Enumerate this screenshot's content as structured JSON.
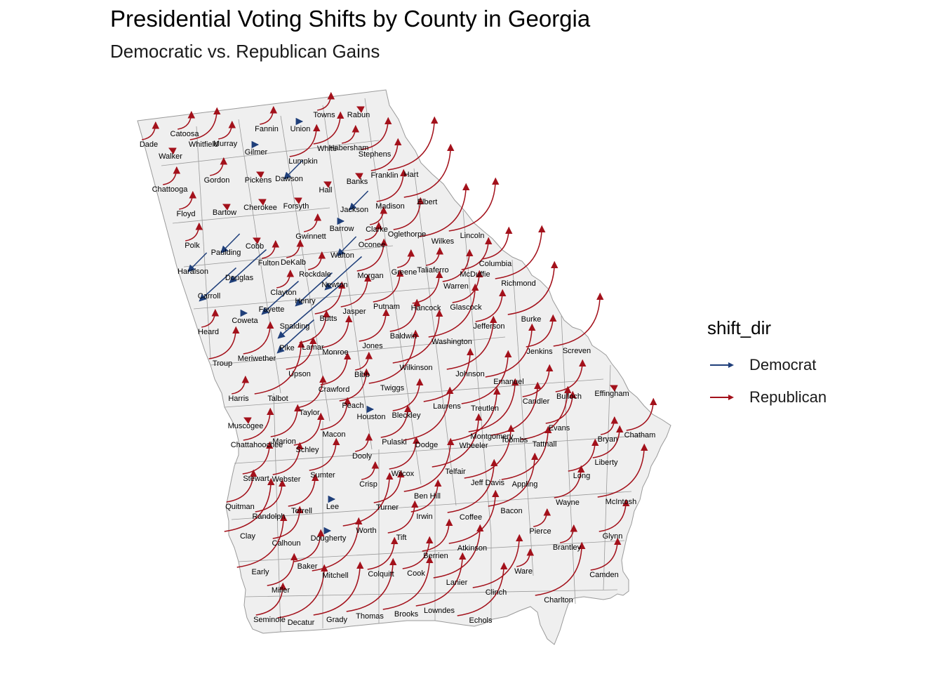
{
  "title": "Presidential Voting Shifts by County in Georgia",
  "subtitle": "Democratic vs. Republican Gains",
  "legend": {
    "title": "shift_dir",
    "items": [
      {
        "label": "Democrat",
        "color": "#1f3f7a"
      },
      {
        "label": "Republican",
        "color": "#a3111b"
      }
    ]
  },
  "map": {
    "region": "Georgia",
    "fill_color": "#efefef",
    "border_color": "#9a9a9a",
    "counties": [
      {
        "name": "Dade",
        "dir": "Republican",
        "size": "small"
      },
      {
        "name": "Catoosa",
        "dir": "Republican",
        "size": "small"
      },
      {
        "name": "Whitfield",
        "dir": "Republican",
        "size": "medium"
      },
      {
        "name": "Murray",
        "dir": "Republican",
        "size": "small"
      },
      {
        "name": "Fannin",
        "dir": "Republican",
        "size": "small"
      },
      {
        "name": "Union",
        "dir": "Democrat",
        "size": "tiny"
      },
      {
        "name": "Towns",
        "dir": "Republican",
        "size": "small"
      },
      {
        "name": "Rabun",
        "dir": "Republican",
        "size": "tiny"
      },
      {
        "name": "Walker",
        "dir": "Republican",
        "size": "tiny"
      },
      {
        "name": "Gilmer",
        "dir": "Democrat",
        "size": "tiny"
      },
      {
        "name": "White",
        "dir": "Republican",
        "size": "medium"
      },
      {
        "name": "Habersham",
        "dir": "Republican",
        "size": "small"
      },
      {
        "name": "Stephens",
        "dir": "Republican",
        "size": "medium"
      },
      {
        "name": "Lumpkin",
        "dir": "Republican",
        "size": "medium"
      },
      {
        "name": "Chattooga",
        "dir": "Republican",
        "size": "small"
      },
      {
        "name": "Gordon",
        "dir": "Republican",
        "size": "small"
      },
      {
        "name": "Pickens",
        "dir": "Republican",
        "size": "tiny"
      },
      {
        "name": "Dawson",
        "dir": "Democrat",
        "size": "small"
      },
      {
        "name": "Hall",
        "dir": "Republican",
        "size": "tiny"
      },
      {
        "name": "Banks",
        "dir": "Republican",
        "size": "tiny"
      },
      {
        "name": "Franklin",
        "dir": "Republican",
        "size": "medium"
      },
      {
        "name": "Hart",
        "dir": "Republican",
        "size": "large"
      },
      {
        "name": "Floyd",
        "dir": "Republican",
        "size": "small"
      },
      {
        "name": "Bartow",
        "dir": "Republican",
        "size": "tiny"
      },
      {
        "name": "Cherokee",
        "dir": "Republican",
        "size": "tiny"
      },
      {
        "name": "Forsyth",
        "dir": "Republican",
        "size": "tiny"
      },
      {
        "name": "Jackson",
        "dir": "Democrat",
        "size": "small"
      },
      {
        "name": "Madison",
        "dir": "Republican",
        "size": "medium"
      },
      {
        "name": "Elbert",
        "dir": "Republican",
        "size": "large"
      },
      {
        "name": "Polk",
        "dir": "Republican",
        "size": "small"
      },
      {
        "name": "Paulding",
        "dir": "Democrat",
        "size": "small"
      },
      {
        "name": "Cobb",
        "dir": "Republican",
        "size": "tiny"
      },
      {
        "name": "Gwinnett",
        "dir": "Republican",
        "size": "small"
      },
      {
        "name": "Barrow",
        "dir": "Democrat",
        "size": "tiny"
      },
      {
        "name": "Clarke",
        "dir": "Republican",
        "size": "small"
      },
      {
        "name": "Oglethorpe",
        "dir": "Republican",
        "size": "medium"
      },
      {
        "name": "Wilkes",
        "dir": "Republican",
        "size": "large"
      },
      {
        "name": "Lincoln",
        "dir": "Republican",
        "size": "large"
      },
      {
        "name": "Haralson",
        "dir": "Democrat",
        "size": "small"
      },
      {
        "name": "Fulton",
        "dir": "Republican",
        "size": "small"
      },
      {
        "name": "DeKalb",
        "dir": "Republican",
        "size": "small"
      },
      {
        "name": "Walton",
        "dir": "Democrat",
        "size": "small"
      },
      {
        "name": "Oconee",
        "dir": "Republican",
        "size": "small"
      },
      {
        "name": "Columbia",
        "dir": "Republican",
        "size": "medium"
      },
      {
        "name": "Douglas",
        "dir": "Democrat",
        "size": "medium"
      },
      {
        "name": "Rockdale",
        "dir": "Republican",
        "size": "small"
      },
      {
        "name": "Morgan",
        "dir": "Republican",
        "size": "medium"
      },
      {
        "name": "Greene",
        "dir": "Republican",
        "size": "small"
      },
      {
        "name": "Taliaferro",
        "dir": "Republican",
        "size": "small"
      },
      {
        "name": "McDuffie",
        "dir": "Republican",
        "size": "medium"
      },
      {
        "name": "Carroll",
        "dir": "Democrat",
        "size": "medium"
      },
      {
        "name": "Clayton",
        "dir": "Republican",
        "size": "small"
      },
      {
        "name": "Newton",
        "dir": "Democrat",
        "size": "medium"
      },
      {
        "name": "Warren",
        "dir": "Republican",
        "size": "medium"
      },
      {
        "name": "Richmond",
        "dir": "Republican",
        "size": "large"
      },
      {
        "name": "Henry",
        "dir": "Democrat",
        "size": "medium"
      },
      {
        "name": "Fayette",
        "dir": "Democrat",
        "size": "medium"
      },
      {
        "name": "Jasper",
        "dir": "Republican",
        "size": "medium"
      },
      {
        "name": "Putnam",
        "dir": "Republican",
        "size": "medium"
      },
      {
        "name": "Hancock",
        "dir": "Republican",
        "size": "medium"
      },
      {
        "name": "Glascock",
        "dir": "Republican",
        "size": "medium"
      },
      {
        "name": "Coweta",
        "dir": "Democrat",
        "size": "tiny"
      },
      {
        "name": "Butts",
        "dir": "Republican",
        "size": "medium"
      },
      {
        "name": "Heard",
        "dir": "Republican",
        "size": "small"
      },
      {
        "name": "Spalding",
        "dir": "Democrat",
        "size": "large"
      },
      {
        "name": "Jefferson",
        "dir": "Republican",
        "size": "medium"
      },
      {
        "name": "Burke",
        "dir": "Republican",
        "size": "large"
      },
      {
        "name": "Baldwin",
        "dir": "Republican",
        "size": "medium"
      },
      {
        "name": "Washington",
        "dir": "Republican",
        "size": "large"
      },
      {
        "name": "Pike",
        "dir": "Democrat",
        "size": "medium"
      },
      {
        "name": "Lamar",
        "dir": "Republican",
        "size": "medium"
      },
      {
        "name": "Meriwether",
        "dir": "Republican",
        "size": "medium"
      },
      {
        "name": "Monroe",
        "dir": "Republican",
        "size": "medium"
      },
      {
        "name": "Jones",
        "dir": "Republican",
        "size": "medium"
      },
      {
        "name": "Jenkins",
        "dir": "Republican",
        "size": "medium"
      },
      {
        "name": "Screven",
        "dir": "Republican",
        "size": "large"
      },
      {
        "name": "Troup",
        "dir": "Republican",
        "size": "medium"
      },
      {
        "name": "Upson",
        "dir": "Republican",
        "size": "medium"
      },
      {
        "name": "Wilkinson",
        "dir": "Republican",
        "size": "large"
      },
      {
        "name": "Johnson",
        "dir": "Republican",
        "size": "large"
      },
      {
        "name": "Bibb",
        "dir": "Republican",
        "size": "small"
      },
      {
        "name": "Emanuel",
        "dir": "Republican",
        "size": "large"
      },
      {
        "name": "Crawford",
        "dir": "Republican",
        "size": "medium"
      },
      {
        "name": "Twiggs",
        "dir": "Republican",
        "size": "large"
      },
      {
        "name": "Harris",
        "dir": "Republican",
        "size": "small"
      },
      {
        "name": "Talbot",
        "dir": "Republican",
        "size": "large"
      },
      {
        "name": "Bulloch",
        "dir": "Republican",
        "size": "medium"
      },
      {
        "name": "Effingham",
        "dir": "Republican",
        "size": "tiny"
      },
      {
        "name": "Candler",
        "dir": "Republican",
        "size": "medium"
      },
      {
        "name": "Peach",
        "dir": "Republican",
        "size": "medium"
      },
      {
        "name": "Laurens",
        "dir": "Republican",
        "size": "large"
      },
      {
        "name": "Taylor",
        "dir": "Republican",
        "size": "medium"
      },
      {
        "name": "Houston",
        "dir": "Democrat",
        "size": "tiny"
      },
      {
        "name": "Bleckley",
        "dir": "Republican",
        "size": "medium"
      },
      {
        "name": "Treutlen",
        "dir": "Republican",
        "size": "large"
      },
      {
        "name": "Muscogee",
        "dir": "Republican",
        "size": "tiny"
      },
      {
        "name": "Evans",
        "dir": "Republican",
        "size": "medium"
      },
      {
        "name": "Macon",
        "dir": "Republican",
        "size": "medium"
      },
      {
        "name": "Montgomery",
        "dir": "Republican",
        "size": "large"
      },
      {
        "name": "Toombs",
        "dir": "Republican",
        "size": "large"
      },
      {
        "name": "Bryan",
        "dir": "Republican",
        "size": "small"
      },
      {
        "name": "Chatham",
        "dir": "Republican",
        "size": "medium"
      },
      {
        "name": "Chattahoochee",
        "dir": "Republican",
        "size": "medium"
      },
      {
        "name": "Marion",
        "dir": "Republican",
        "size": "medium"
      },
      {
        "name": "Pulaski",
        "dir": "Republican",
        "size": "medium"
      },
      {
        "name": "Dodge",
        "dir": "Republican",
        "size": "large"
      },
      {
        "name": "Wheeler",
        "dir": "Republican",
        "size": "large"
      },
      {
        "name": "Tattnall",
        "dir": "Republican",
        "size": "large"
      },
      {
        "name": "Schley",
        "dir": "Republican",
        "size": "medium"
      },
      {
        "name": "Dooly",
        "dir": "Republican",
        "size": "small"
      },
      {
        "name": "Liberty",
        "dir": "Republican",
        "size": "medium"
      },
      {
        "name": "Stewart",
        "dir": "Republican",
        "size": "medium"
      },
      {
        "name": "Webster",
        "dir": "Republican",
        "size": "medium"
      },
      {
        "name": "Sumter",
        "dir": "Republican",
        "size": "medium"
      },
      {
        "name": "Wilcox",
        "dir": "Republican",
        "size": "medium"
      },
      {
        "name": "Telfair",
        "dir": "Republican",
        "size": "large"
      },
      {
        "name": "Long",
        "dir": "Republican",
        "size": "medium"
      },
      {
        "name": "Crisp",
        "dir": "Republican",
        "size": "small"
      },
      {
        "name": "Jeff Davis",
        "dir": "Republican",
        "size": "large"
      },
      {
        "name": "Appling",
        "dir": "Republican",
        "size": "large"
      },
      {
        "name": "Ben Hill",
        "dir": "Republican",
        "size": "large"
      },
      {
        "name": "Quitman",
        "dir": "Republican",
        "size": "medium"
      },
      {
        "name": "Lee",
        "dir": "Democrat",
        "size": "tiny"
      },
      {
        "name": "Wayne",
        "dir": "Republican",
        "size": "medium"
      },
      {
        "name": "McIntosh",
        "dir": "Republican",
        "size": "large"
      },
      {
        "name": "Turner",
        "dir": "Republican",
        "size": "medium"
      },
      {
        "name": "Terrell",
        "dir": "Republican",
        "size": "medium"
      },
      {
        "name": "Randolph",
        "dir": "Republican",
        "size": "medium"
      },
      {
        "name": "Bacon",
        "dir": "Republican",
        "size": "large"
      },
      {
        "name": "Coffee",
        "dir": "Republican",
        "size": "large"
      },
      {
        "name": "Irwin",
        "dir": "Republican",
        "size": "medium"
      },
      {
        "name": "Pierce",
        "dir": "Republican",
        "size": "small"
      },
      {
        "name": "Worth",
        "dir": "Republican",
        "size": "large"
      },
      {
        "name": "Clay",
        "dir": "Republican",
        "size": "large"
      },
      {
        "name": "Calhoun",
        "dir": "Republican",
        "size": "medium"
      },
      {
        "name": "Dougherty",
        "dir": "Democrat",
        "size": "tiny"
      },
      {
        "name": "Tift",
        "dir": "Republican",
        "size": "medium"
      },
      {
        "name": "Glynn",
        "dir": "Republican",
        "size": "medium"
      },
      {
        "name": "Atkinson",
        "dir": "Republican",
        "size": "large"
      },
      {
        "name": "Brantley",
        "dir": "Republican",
        "size": "small"
      },
      {
        "name": "Berrien",
        "dir": "Republican",
        "size": "medium"
      },
      {
        "name": "Baker",
        "dir": "Republican",
        "size": "medium"
      },
      {
        "name": "Early",
        "dir": "Republican",
        "size": "large"
      },
      {
        "name": "Mitchell",
        "dir": "Republican",
        "size": "large"
      },
      {
        "name": "Colquitt",
        "dir": "Republican",
        "size": "medium"
      },
      {
        "name": "Cook",
        "dir": "Republican",
        "size": "medium"
      },
      {
        "name": "Ware",
        "dir": "Republican",
        "size": "small"
      },
      {
        "name": "Lanier",
        "dir": "Republican",
        "size": "large"
      },
      {
        "name": "Camden",
        "dir": "Republican",
        "size": "medium"
      },
      {
        "name": "Miller",
        "dir": "Republican",
        "size": "medium"
      },
      {
        "name": "Clinch",
        "dir": "Republican",
        "size": "large"
      },
      {
        "name": "Charlton",
        "dir": "Republican",
        "size": "large"
      },
      {
        "name": "Seminole",
        "dir": "Republican",
        "size": "medium"
      },
      {
        "name": "Decatur",
        "dir": "Republican",
        "size": "large"
      },
      {
        "name": "Grady",
        "dir": "Republican",
        "size": "large"
      },
      {
        "name": "Thomas",
        "dir": "Republican",
        "size": "large"
      },
      {
        "name": "Brooks",
        "dir": "Republican",
        "size": "large"
      },
      {
        "name": "Lowndes",
        "dir": "Republican",
        "size": "large"
      },
      {
        "name": "Echols",
        "dir": "Republican",
        "size": "large"
      }
    ]
  }
}
